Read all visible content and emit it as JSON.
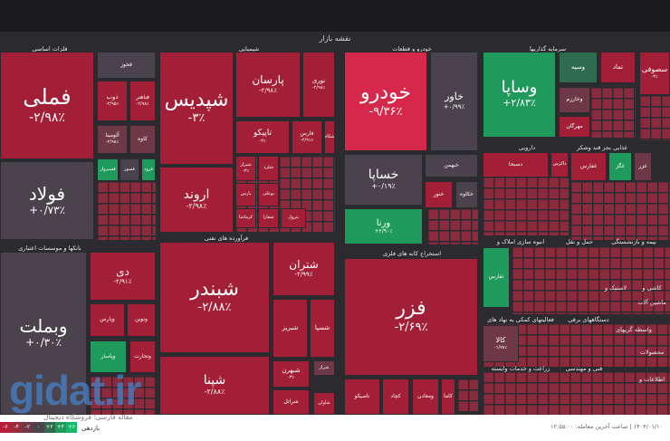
{
  "map_title": "نقشه بازار",
  "sections": [
    "فلزات اساسی",
    "شیمیایی",
    "خودرو و قطعات",
    "سرمایه گذاریها",
    "دارویی",
    "غذایی بجز قند وشکر",
    "بانکها و موسسات اعتباری",
    "فرآورده های نفتی",
    "استخراج کانه های فلزی",
    "انبوه سازی املاک و",
    "حمل و نقل",
    "بیمه و بازنشستگی",
    "فعالیتهای کمکی به نهاد های",
    "دستگاههای برقی",
    "لاستیک و",
    "کاشی و",
    "ماشین آلات",
    "واسطه گریهای",
    "زراعت و خدمات وابسته",
    "فنی و مهندسی",
    "محصولات",
    "اطلاعات و"
  ],
  "tiles": [
    {
      "name": "فملی",
      "change": "-۲/۹۸٪",
      "color": "red"
    },
    {
      "name": "فولاد",
      "change": "+۰/۷۳٪",
      "color": "gray"
    },
    {
      "name": "فخوز",
      "change": "",
      "color": "gray"
    },
    {
      "name": "ذوب",
      "change": "-۲/۹۵٪",
      "color": "red"
    },
    {
      "name": "فباهنر",
      "change": "-۲/۹۸٪",
      "color": "red"
    },
    {
      "name": "آلومینا",
      "change": "-۲/۹۸٪",
      "color": "muted"
    },
    {
      "name": "کاوه",
      "change": "",
      "color": "muted"
    },
    {
      "name": "فسبزوار",
      "change": "",
      "color": "green"
    },
    {
      "name": "فسوز",
      "change": "",
      "color": "gray"
    },
    {
      "name": "فرود",
      "change": "",
      "color": "green"
    },
    {
      "name": "شپدیس",
      "change": "-۳٪",
      "color": "red"
    },
    {
      "name": "اروند",
      "change": "-۲/۹۸٪",
      "color": "red"
    },
    {
      "name": "پارسان",
      "change": "-۲/۹۸٪",
      "color": "red"
    },
    {
      "name": "نوری",
      "change": "-۲/۹۸٪",
      "color": "red"
    },
    {
      "name": "تاپیکو",
      "change": "-۳٪",
      "color": "red"
    },
    {
      "name": "فارس",
      "change": "-۲/۹۱٪",
      "color": "red"
    },
    {
      "name": "شکام",
      "change": "",
      "color": "red"
    },
    {
      "name": "شیراز",
      "change": "-۳٪",
      "color": "red"
    },
    {
      "name": "شلرد",
      "change": "",
      "color": "red"
    },
    {
      "name": "پارس",
      "change": "",
      "color": "red"
    },
    {
      "name": "بوعلی",
      "change": "",
      "color": "red"
    },
    {
      "name": "کرماشا",
      "change": "",
      "color": "red"
    },
    {
      "name": "شفارا",
      "change": "",
      "color": "red"
    },
    {
      "name": "پترول",
      "change": "",
      "color": "red"
    },
    {
      "name": "شبندر",
      "change": "-۲/۸۸٪",
      "color": "red"
    },
    {
      "name": "شپنا",
      "change": "-۲/۸۸٪",
      "color": "red"
    },
    {
      "name": "شتران",
      "change": "-۲/۹۹٪",
      "color": "red"
    },
    {
      "name": "شبریز",
      "change": "",
      "color": "red"
    },
    {
      "name": "شسپا",
      "change": "",
      "color": "red"
    },
    {
      "name": "شبهرن",
      "change": "-۳٪",
      "color": "red"
    },
    {
      "name": "شراز",
      "change": "",
      "color": "muted"
    },
    {
      "name": "شراتل",
      "change": "",
      "color": "red"
    },
    {
      "name": "شاوان",
      "change": "",
      "color": "red"
    },
    {
      "name": "وبملت",
      "change": "+۰/۳۰٪",
      "color": "gray"
    },
    {
      "name": "دی",
      "change": "-۲/۹۱٪",
      "color": "red"
    },
    {
      "name": "وپارس",
      "change": "",
      "color": "red"
    },
    {
      "name": "ونوین",
      "change": "",
      "color": "red"
    },
    {
      "name": "وپاسار",
      "change": "",
      "color": "green"
    },
    {
      "name": "وتجارت",
      "change": "",
      "color": "red"
    },
    {
      "name": "خودرو",
      "change": "-۹/۳۶٪",
      "color": "bred"
    },
    {
      "name": "خاور",
      "change": "+۰/۹۹٪",
      "color": "gray"
    },
    {
      "name": "خساپا",
      "change": "+۰/۱۹٪",
      "color": "gray"
    },
    {
      "name": "خبهمن",
      "change": "",
      "color": "gray"
    },
    {
      "name": "خنور",
      "change": "",
      "color": "red"
    },
    {
      "name": "خکاوه",
      "change": "",
      "color": "gray"
    },
    {
      "name": "ورنا",
      "change": "+۲/۹۰٪",
      "color": "green"
    },
    {
      "name": "وساپا",
      "change": "+۲/۸۳٪",
      "color": "green"
    },
    {
      "name": "وسپه",
      "change": "",
      "color": "dgreen"
    },
    {
      "name": "تماد",
      "change": "",
      "color": "red"
    },
    {
      "name": "وخارزم",
      "change": "",
      "color": "muted"
    },
    {
      "name": "مهرگان",
      "change": "",
      "color": "red"
    },
    {
      "name": "سصوفی",
      "change": "-۳٪",
      "color": "red"
    },
    {
      "name": "دسبحا",
      "change": "",
      "color": "red"
    },
    {
      "name": "ذاکرس",
      "change": "",
      "color": "red"
    },
    {
      "name": "غفارس",
      "change": "",
      "color": "red"
    },
    {
      "name": "غگز",
      "change": "",
      "color": "green"
    },
    {
      "name": "غزر",
      "change": "",
      "color": "muted"
    },
    {
      "name": "ثفارس",
      "change": "",
      "color": "green"
    },
    {
      "name": "فزر",
      "change": "-۲/۶۹٪",
      "color": "red"
    },
    {
      "name": "تاصیکو",
      "change": "",
      "color": "red"
    },
    {
      "name": "کچاد",
      "change": "",
      "color": "red"
    },
    {
      "name": "ومعادن",
      "change": "",
      "color": "red"
    },
    {
      "name": "کاما",
      "change": "",
      "color": "red"
    },
    {
      "name": "کالا",
      "change": "-۱/۷۸٪",
      "color": "muted"
    }
  ],
  "legend": [
    "-۶",
    "-۴",
    "-۲",
    "۰",
    "+۲",
    "+۴",
    "+۶"
  ],
  "legend_colors": [
    "#b81d3a",
    "#9a2a3c",
    "#6e3848",
    "#4b434b",
    "#2f6b4f",
    "#1f9a5c",
    "#17b86a"
  ],
  "return_label": "بازدهی",
  "last_update": "۱۴۰۴/۰۱/۱۰ | ساعت آخرین معامله: ۱۲:۵۵:۰۰",
  "watermark": {
    "logo": "gidat.ir",
    "subtitle": "مقاله فارسی؛ فروشگاه دیجیتال"
  }
}
